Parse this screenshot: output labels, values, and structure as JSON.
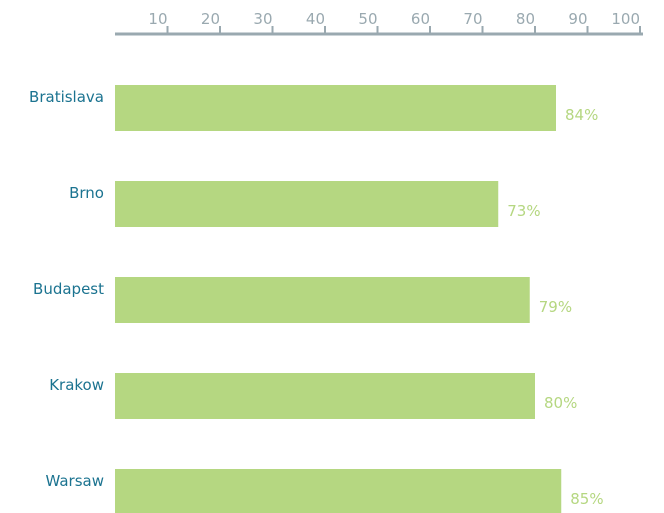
{
  "chart_data": {
    "type": "bar",
    "orientation": "horizontal",
    "categories": [
      "Bratislava",
      "Brno",
      "Budapest",
      "Krakow",
      "Warsaw"
    ],
    "values": [
      84,
      73,
      79,
      80,
      85
    ],
    "value_labels": [
      "84%",
      "73%",
      "79%",
      "80%",
      "85%"
    ],
    "xlim": [
      0,
      100
    ],
    "x_ticks": [
      "10",
      "20",
      "30",
      "40",
      "50",
      "60",
      "70",
      "80",
      "90",
      "100"
    ],
    "axis_position": "top",
    "title": "",
    "xlabel": "",
    "ylabel": "",
    "grid": false,
    "colors": {
      "bar": "#b5d781",
      "value_label": "#b5d781",
      "category_label": "#1b7390",
      "axis": "#9aa9b0"
    }
  }
}
